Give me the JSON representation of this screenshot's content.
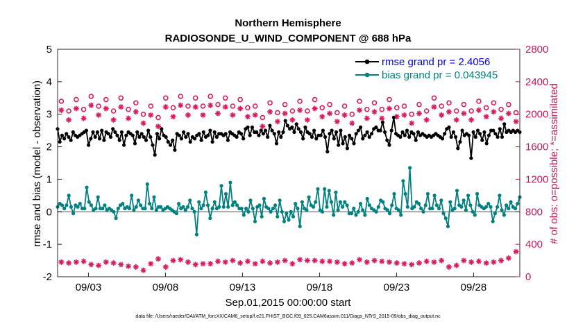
{
  "chart_data": {
    "type": "line",
    "title": "Northern Hemisphere",
    "subtitle": "RADIOSONDE_U_WIND_COMPONENT @ 688 hPa",
    "xlabel": "Sep.01,2015 00:00:00 start",
    "ylabel_left": "rmse and bias (model - observation)",
    "ylabel_right": "# of obs: o=possible; *=assimilated",
    "footnote": "data file: /Users/raeder/DAI/ATM_forcXX/CAM6_setup/f.e21.FHIST_BGC.f09_025.CAM6assim.011/Diags_NTrS_2015-09/obs_diag_output.nc",
    "xlim": [
      1.0,
      31.0
    ],
    "ylim_left": [
      -2,
      5
    ],
    "ylim_right": [
      0,
      2800
    ],
    "x_ticks": [
      {
        "value": 3,
        "label": "09/03"
      },
      {
        "value": 8,
        "label": "09/08"
      },
      {
        "value": 13,
        "label": "09/13"
      },
      {
        "value": 18,
        "label": "09/18"
      },
      {
        "value": 23,
        "label": "09/23"
      },
      {
        "value": 28,
        "label": "09/28"
      }
    ],
    "y_ticks_left": [
      {
        "value": -2,
        "label": "-2"
      },
      {
        "value": -1,
        "label": "-1"
      },
      {
        "value": 0,
        "label": "0"
      },
      {
        "value": 1,
        "label": "1"
      },
      {
        "value": 2,
        "label": "2"
      },
      {
        "value": 3,
        "label": "3"
      },
      {
        "value": 4,
        "label": "4"
      },
      {
        "value": 5,
        "label": "5"
      }
    ],
    "y_ticks_right": [
      {
        "value": 0,
        "label": "0"
      },
      {
        "value": 400,
        "label": "400"
      },
      {
        "value": 800,
        "label": "800"
      },
      {
        "value": 1200,
        "label": "1200"
      },
      {
        "value": 1600,
        "label": "1600"
      },
      {
        "value": 2000,
        "label": "2000"
      },
      {
        "value": 2400,
        "label": "2400"
      },
      {
        "value": 2800,
        "label": "2800"
      }
    ],
    "zero_line": 0,
    "series": [
      {
        "name": "rmse",
        "legend": "rmse grand pr = 2.4056",
        "color": "#000000",
        "legend_text_color": "#0000ee",
        "axis": "left",
        "values": [
          2.55,
          2.15,
          2.35,
          2.25,
          2.4,
          2.3,
          2.2,
          2.45,
          2.35,
          2.3,
          2.35,
          2.4,
          2.45,
          2.5,
          2.05,
          2.25,
          2.45,
          2.3,
          2.45,
          2.25,
          2.5,
          2.2,
          2.45,
          2.4,
          2.3,
          2.55,
          2.45,
          2.35,
          2.2,
          2.45,
          2.05,
          2.35,
          2.45,
          2.4,
          2.35,
          2.1,
          2.45,
          2.3,
          2.4,
          2.3,
          2.2,
          2.5,
          2.3,
          2.05,
          1.75,
          2.4,
          2.25,
          2.55,
          2.35,
          2.3,
          2.15,
          2.05,
          2.2,
          1.9,
          2.4,
          2.35,
          2.25,
          2.45,
          2.3,
          2.4,
          2.15,
          2.3,
          2.25,
          2.35,
          2.4,
          2.2,
          2.45,
          2.3,
          2.35,
          2.5,
          2.15,
          2.45,
          2.3,
          2.4,
          2.4,
          2.35,
          2.4,
          2.2,
          2.45,
          2.4,
          2.35,
          2.3,
          2.45,
          2.4,
          2.25,
          2.55,
          2.6,
          2.35,
          2.6,
          2.45,
          2.45,
          2.35,
          2.5,
          2.4,
          2.5,
          2.3,
          2.65,
          2.5,
          2.4,
          2.1,
          2.45,
          2.3,
          2.45,
          2.8,
          2.65,
          2.55,
          2.6,
          2.45,
          2.7,
          2.55,
          2.45,
          2.25,
          2.6,
          2.45,
          2.4,
          2.3,
          2.5,
          2.25,
          2.35,
          2.35,
          2.5,
          2.3,
          1.85,
          2.4,
          2.5,
          2.25,
          2.45,
          2.05,
          2.5,
          2.1,
          2.3,
          1.95,
          2.35,
          2.25,
          2.1,
          2.4,
          2.5,
          2.6,
          2.25,
          2.35,
          2.45,
          2.3,
          2.4,
          2.55,
          2.6,
          2.5,
          2.5,
          2.75,
          2.45,
          2.2,
          2.05,
          2.5,
          2.9,
          2.4,
          2.35,
          2.3,
          2.45,
          2.35,
          2.5,
          2.3,
          2.45,
          2.4,
          2.2,
          2.45,
          2.35,
          2.4,
          2.35,
          2.3,
          2.35,
          2.3,
          2.35,
          2.4,
          2.35,
          2.3,
          2.25,
          2.4,
          2.55,
          2.6,
          2.3,
          2.45,
          2.3,
          1.95,
          2.15,
          2.5,
          2.35,
          2.4,
          2.35,
          1.65,
          2.45,
          2.3,
          2.5,
          2.4,
          2.2,
          2.45,
          2.1,
          2.35,
          2.5,
          2.5,
          2.4,
          2.3,
          2.55,
          2.3,
          2.7,
          2.45,
          2.5,
          2.45,
          2.5,
          2.45,
          2.5,
          2.45
        ]
      },
      {
        "name": "bias",
        "legend": "bias grand pr = 0.043945",
        "color": "#00807f",
        "legend_text_color": "#00807f",
        "axis": "left",
        "values": [
          0.15,
          0.25,
          0.2,
          0.1,
          0.2,
          0.5,
          0.15,
          -0.05,
          0.2,
          0.15,
          0.25,
          0.1,
          0.1,
          0.75,
          0.3,
          0.2,
          0.05,
          0.1,
          0.45,
          0.1,
          0.1,
          0.2,
          0.05,
          0.1,
          0.05,
          0.0,
          -0.2,
          0.1,
          0.2,
          0.25,
          0.1,
          0.15,
          0.1,
          0.5,
          0.05,
          0.15,
          0.35,
          0.2,
          0.1,
          0.1,
          0.85,
          0.25,
          0.1,
          0.45,
          0.05,
          0.15,
          0.15,
          0.05,
          0.1,
          0.15,
          0.1,
          0.05,
          0.0,
          -0.05,
          0.25,
          0.1,
          0.15,
          0.05,
          0.15,
          0.35,
          0.1,
          0.0,
          -0.7,
          0.3,
          0.1,
          0.2,
          0.6,
          0.2,
          -0.2,
          0.1,
          0.3,
          0.1,
          0.15,
          0.8,
          0.15,
          0.55,
          0.15,
          0.9,
          0.2,
          0.3,
          0.2,
          0.1,
          0.1,
          -0.1,
          0.1,
          0.0,
          0.35,
          0.1,
          -0.3,
          0.15,
          0.2,
          -0.15,
          0.4,
          0.15,
          0.1,
          0.0,
          0.1,
          0.2,
          -0.15,
          0.35,
          0.0,
          -0.3,
          -0.05,
          -0.25,
          0.0,
          -0.15,
          0.25,
          0.1,
          -0.45,
          0.3,
          0.1,
          0.05,
          0.45,
          0.2,
          0.15,
          0.3,
          0.7,
          0.05,
          0.0,
          0.7,
          0.15,
          0.65,
          0.3,
          -0.1,
          0.6,
          0.05,
          0.3,
          0.15,
          0.3,
          0.2,
          -0.05,
          -0.05,
          0.1,
          -0.1,
          0.0,
          0.25,
          0.05,
          -0.1,
          0.4,
          0.2,
          0.1,
          0.05,
          0.0,
          0.15,
          0.35,
          0.3,
          0.1,
          0.05,
          -0.05,
          0.2,
          0.55,
          0.1,
          0.05,
          -0.1,
          0.95,
          0.55,
          0.15,
          1.35,
          0.1,
          0.15,
          0.3,
          0.25,
          0.1,
          0.0,
          0.2,
          0.55,
          0.1,
          0.1,
          0.5,
          0.2,
          0.1,
          0.35,
          -0.05,
          -0.2,
          -0.45,
          0.3,
          0.05,
          0.1,
          0.65,
          0.2,
          0.15,
          0.35,
          0.05,
          0.5,
          0.2,
          0.0,
          -0.1,
          0.55,
          0.2,
          0.15,
          0.1,
          0.15,
          0.25,
          0.15,
          -0.3,
          -0.05,
          0.15,
          0.5,
          0.05,
          -0.1,
          0.2,
          0.1,
          0.3,
          0.15,
          0.1,
          0.25,
          0.45
        ]
      },
      {
        "name": "possible obs",
        "marker": "o",
        "color": "#d81b60",
        "axis": "right",
        "day_values": [
          [
            2160,
            2040
          ],
          [
            2180,
            2060
          ],
          [
            2220,
            2100
          ],
          [
            2180,
            2040
          ],
          [
            2200,
            2060
          ],
          [
            2140,
            2000
          ],
          [
            2100,
            1960
          ],
          [
            2200,
            2080
          ],
          [
            2220,
            2100
          ],
          [
            2200,
            2100
          ],
          [
            2220,
            2120
          ],
          [
            2200,
            2100
          ],
          [
            2180,
            2080
          ],
          [
            2100,
            1960
          ],
          [
            2140,
            2020
          ],
          [
            2120,
            2040
          ],
          [
            2160,
            2040
          ],
          [
            2180,
            2080
          ],
          [
            2120,
            2020
          ],
          [
            2100,
            2000
          ],
          [
            2160,
            2060
          ],
          [
            2140,
            2060
          ],
          [
            2180,
            2080
          ],
          [
            2100,
            2000
          ],
          [
            2120,
            2040
          ],
          [
            2200,
            2100
          ],
          [
            2140,
            2040
          ],
          [
            2120,
            2040
          ],
          [
            2160,
            2080
          ],
          [
            2140,
            2060
          ],
          [
            2120,
            2020
          ]
        ]
      },
      {
        "name": "assimilated obs",
        "marker": "*",
        "color": "#d81b60",
        "axis": "right",
        "day_values": [
          [
            180,
            170
          ],
          [
            180,
            190
          ],
          [
            150,
            140
          ],
          [
            180,
            170
          ],
          [
            150,
            130
          ],
          [
            120,
            80
          ],
          [
            160,
            220
          ],
          [
            120,
            200
          ],
          [
            210,
            180
          ],
          [
            150,
            160
          ],
          [
            160,
            190
          ],
          [
            180,
            200
          ],
          [
            170,
            190
          ],
          [
            160,
            190
          ],
          [
            170,
            180
          ],
          [
            200,
            160
          ],
          [
            210,
            200
          ],
          [
            200,
            190
          ],
          [
            190,
            180
          ],
          [
            160,
            170
          ],
          [
            210,
            180
          ],
          [
            200,
            190
          ],
          [
            180,
            170
          ],
          [
            160,
            150
          ],
          [
            170,
            190
          ],
          [
            180,
            200
          ],
          [
            120,
            140
          ],
          [
            200,
            180
          ],
          [
            190,
            170
          ],
          [
            180,
            200
          ],
          [
            230,
            310
          ]
        ]
      }
    ]
  }
}
